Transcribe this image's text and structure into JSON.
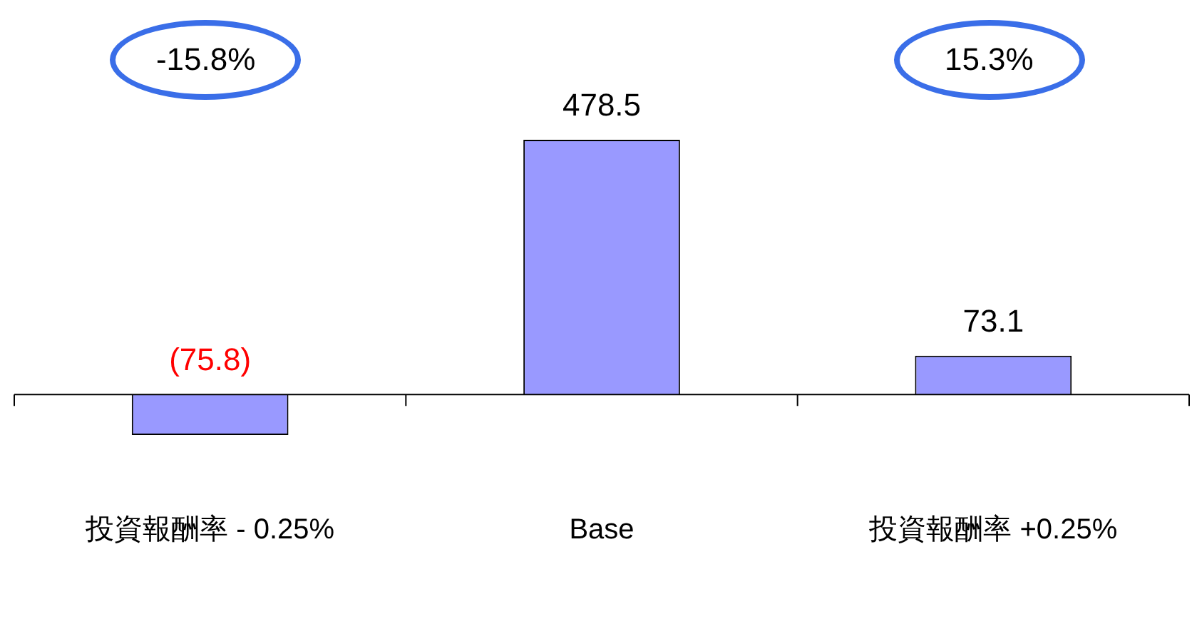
{
  "chart_data": {
    "type": "bar",
    "categories": [
      "投資報酬率 - 0.25%",
      "Base",
      "投資報酬率 +0.25%"
    ],
    "values": [
      -75.8,
      478.5,
      73.1
    ],
    "color": "#9999ff",
    "value_labels": [
      "(75.8)",
      "478.5",
      "73.1"
    ],
    "annotations": [
      "-15.8%",
      "15.3%"
    ],
    "grid": false,
    "legend": false
  }
}
